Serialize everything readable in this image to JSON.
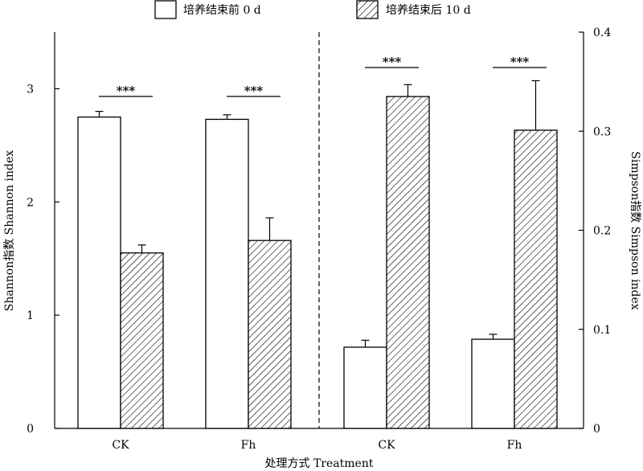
{
  "chart_data": {
    "type": "bar",
    "legend": {
      "placement": "top",
      "entries": [
        {
          "label": "培养结束前 0 d",
          "pattern": "open"
        },
        {
          "label": "培养结束后 10 d",
          "pattern": "hatched"
        }
      ]
    },
    "xlabel": "处理方式 Treatment",
    "panels": [
      {
        "index": "Shannon",
        "axis": "left",
        "ylabel": "Shannon指数 Shannon index",
        "ylim": [
          0,
          3.5
        ],
        "yticks": [
          "0",
          "1",
          "2",
          "3"
        ],
        "categories": [
          "CK",
          "Fh"
        ],
        "series": [
          {
            "name": "培养结束前 0 d",
            "values": [
              2.75,
              2.73
            ],
            "errors": [
              0.05,
              0.04
            ]
          },
          {
            "name": "培养结束后 10 d",
            "values": [
              1.55,
              1.66
            ],
            "errors": [
              0.07,
              0.2
            ]
          }
        ],
        "significance": [
          "***",
          "***"
        ]
      },
      {
        "index": "Simpson",
        "axis": "right",
        "ylabel": "Simpson指数 Simpson index",
        "ylim": [
          0,
          0.4
        ],
        "yticks": [
          "0",
          "0.1",
          "0.2",
          "0.3",
          "0.4"
        ],
        "categories": [
          "CK",
          "Fh"
        ],
        "series": [
          {
            "name": "培养结束前 0 d",
            "values": [
              0.082,
              0.09
            ],
            "errors": [
              0.007,
              0.005
            ]
          },
          {
            "name": "培养结束后 10 d",
            "values": [
              0.335,
              0.301
            ],
            "errors": [
              0.012,
              0.05
            ]
          }
        ],
        "significance": [
          "***",
          "***"
        ]
      }
    ],
    "colors": {
      "stroke": "#000000",
      "fill": "#ffffff"
    },
    "grid": false
  }
}
